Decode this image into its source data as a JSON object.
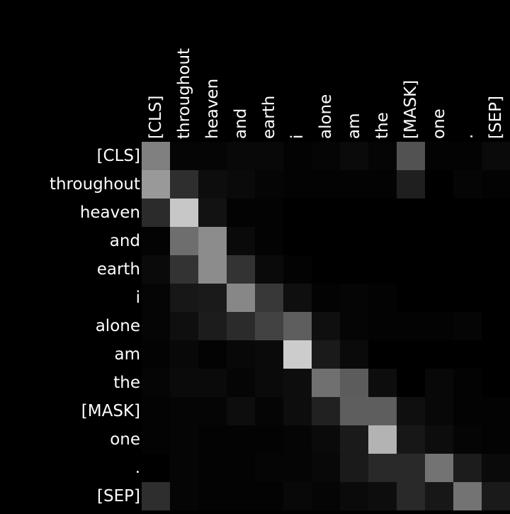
{
  "chart_data": {
    "type": "heatmap",
    "colormap": "grayscale",
    "background": "#000000",
    "label_color": "#ffffff",
    "x_tokens": [
      "[CLS]",
      "throughout",
      "heaven",
      "and",
      "earth",
      "i",
      "alone",
      "am",
      "the",
      "[MASK]",
      "one",
      ".",
      "[SEP]"
    ],
    "y_tokens": [
      "[CLS]",
      "throughout",
      "heaven",
      "and",
      "earth",
      "i",
      "alone",
      "am",
      "the",
      "[MASK]",
      "one",
      ".",
      "[SEP]"
    ],
    "x_tick_position": "top",
    "y_tick_position": "left",
    "values": [
      [
        0.5,
        0.02,
        0.02,
        0.03,
        0.03,
        0.01,
        0.02,
        0.04,
        0.02,
        0.32,
        0.01,
        0.01,
        0.04
      ],
      [
        0.6,
        0.18,
        0.05,
        0.04,
        0.02,
        0.01,
        0.01,
        0.01,
        0.01,
        0.12,
        0.0,
        0.02,
        0.01
      ],
      [
        0.17,
        0.78,
        0.07,
        0.01,
        0.01,
        0.0,
        0.0,
        0.0,
        0.0,
        0.0,
        0.0,
        0.0,
        0.0
      ],
      [
        0.01,
        0.43,
        0.55,
        0.04,
        0.01,
        0.0,
        0.0,
        0.0,
        0.0,
        0.0,
        0.0,
        0.0,
        0.0
      ],
      [
        0.04,
        0.2,
        0.55,
        0.2,
        0.04,
        0.01,
        0.0,
        0.0,
        0.0,
        0.0,
        0.0,
        0.0,
        0.0
      ],
      [
        0.02,
        0.09,
        0.1,
        0.53,
        0.22,
        0.06,
        0.01,
        0.02,
        0.01,
        0.0,
        0.0,
        0.0,
        0.0
      ],
      [
        0.02,
        0.06,
        0.11,
        0.17,
        0.26,
        0.37,
        0.06,
        0.02,
        0.01,
        0.01,
        0.01,
        0.02,
        0.0
      ],
      [
        0.01,
        0.03,
        0.01,
        0.03,
        0.04,
        0.8,
        0.1,
        0.04,
        0.0,
        0.0,
        0.0,
        0.0,
        0.0
      ],
      [
        0.02,
        0.04,
        0.04,
        0.02,
        0.04,
        0.05,
        0.44,
        0.36,
        0.05,
        0.0,
        0.03,
        0.01,
        0.0
      ],
      [
        0.01,
        0.02,
        0.02,
        0.05,
        0.02,
        0.05,
        0.13,
        0.37,
        0.37,
        0.06,
        0.03,
        0.01,
        0.01
      ],
      [
        0.01,
        0.02,
        0.01,
        0.01,
        0.01,
        0.02,
        0.04,
        0.1,
        0.7,
        0.09,
        0.05,
        0.02,
        0.01
      ],
      [
        0.0,
        0.02,
        0.01,
        0.01,
        0.02,
        0.02,
        0.03,
        0.1,
        0.16,
        0.16,
        0.45,
        0.11,
        0.04
      ],
      [
        0.18,
        0.02,
        0.01,
        0.01,
        0.01,
        0.03,
        0.02,
        0.04,
        0.05,
        0.16,
        0.09,
        0.45,
        0.1
      ]
    ]
  }
}
